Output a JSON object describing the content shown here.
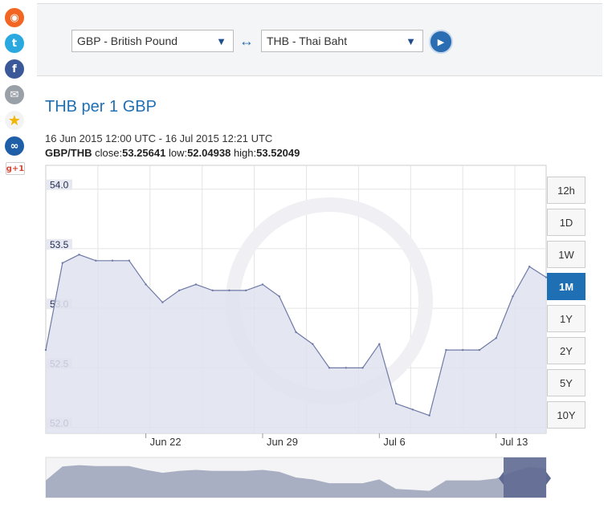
{
  "social": {
    "icons": [
      "rss-icon",
      "twitter-icon",
      "facebook-icon",
      "email-icon",
      "star-icon",
      "link-icon",
      "google-plus-icon"
    ],
    "gplus_label": "g+1"
  },
  "converter": {
    "from": "GBP - British Pound",
    "to": "THB - Thai Baht",
    "swap_glyph": "↔",
    "go_glyph": "▶"
  },
  "header": {
    "title": "THB per 1 GBP",
    "range": "16 Jun 2015 12:00 UTC - 16 Jul 2015 12:21 UTC",
    "pair": "GBP/THB",
    "close_label": "close:",
    "close": "53.25641",
    "low_label": "low:",
    "low": "52.04938",
    "high_label": "high:",
    "high": "53.52049"
  },
  "periods": [
    "12h",
    "1D",
    "1W",
    "1M",
    "1Y",
    "2Y",
    "5Y",
    "10Y"
  ],
  "active_period": "1M",
  "colors": {
    "accent": "#1f6fb5",
    "line": "#6f7aa6",
    "fill": "#dfe2ee",
    "navigator": "#a9afc2",
    "navigator_window": "#5f6a93"
  },
  "chart_data": {
    "type": "area",
    "x_start": "2015-06-16",
    "x_end": "2015-07-16",
    "ylim": [
      51.95,
      54.2
    ],
    "yticks": [
      52.0,
      52.5,
      53.0,
      53.5,
      54.0
    ],
    "ytick_labels": [
      "52.0",
      "52.5",
      "53.0",
      "53.5",
      "54.0"
    ],
    "xticks": [
      {
        "date": "2015-06-22",
        "label": "Jun 22"
      },
      {
        "date": "2015-06-29",
        "label": "Jun 29"
      },
      {
        "date": "2015-07-06",
        "label": "Jul 6"
      },
      {
        "date": "2015-07-13",
        "label": "Jul 13"
      }
    ],
    "grid": true,
    "x": [
      "2015-06-16",
      "2015-06-17",
      "2015-06-18",
      "2015-06-19",
      "2015-06-20",
      "2015-06-21",
      "2015-06-22",
      "2015-06-23",
      "2015-06-24",
      "2015-06-25",
      "2015-06-26",
      "2015-06-27",
      "2015-06-28",
      "2015-06-29",
      "2015-06-30",
      "2015-07-01",
      "2015-07-02",
      "2015-07-03",
      "2015-07-04",
      "2015-07-05",
      "2015-07-06",
      "2015-07-07",
      "2015-07-08",
      "2015-07-09",
      "2015-07-10",
      "2015-07-11",
      "2015-07-12",
      "2015-07-13",
      "2015-07-14",
      "2015-07-15",
      "2015-07-16"
    ],
    "values": [
      52.65,
      53.38,
      53.45,
      53.4,
      53.4,
      53.4,
      53.2,
      53.05,
      53.15,
      53.2,
      53.15,
      53.15,
      53.15,
      53.2,
      53.1,
      52.8,
      52.7,
      52.5,
      52.5,
      52.5,
      52.7,
      52.2,
      52.15,
      52.1,
      52.65,
      52.65,
      52.65,
      52.75,
      53.1,
      53.35,
      53.26
    ],
    "navigator_values": [
      52.65,
      53.38,
      53.45,
      53.4,
      53.4,
      53.4,
      53.2,
      53.05,
      53.15,
      53.2,
      53.15,
      53.15,
      53.15,
      53.2,
      53.1,
      52.8,
      52.7,
      52.5,
      52.5,
      52.5,
      52.7,
      52.2,
      52.15,
      52.1,
      52.65,
      52.65,
      52.65,
      52.75,
      53.1,
      53.35,
      53.26
    ]
  }
}
